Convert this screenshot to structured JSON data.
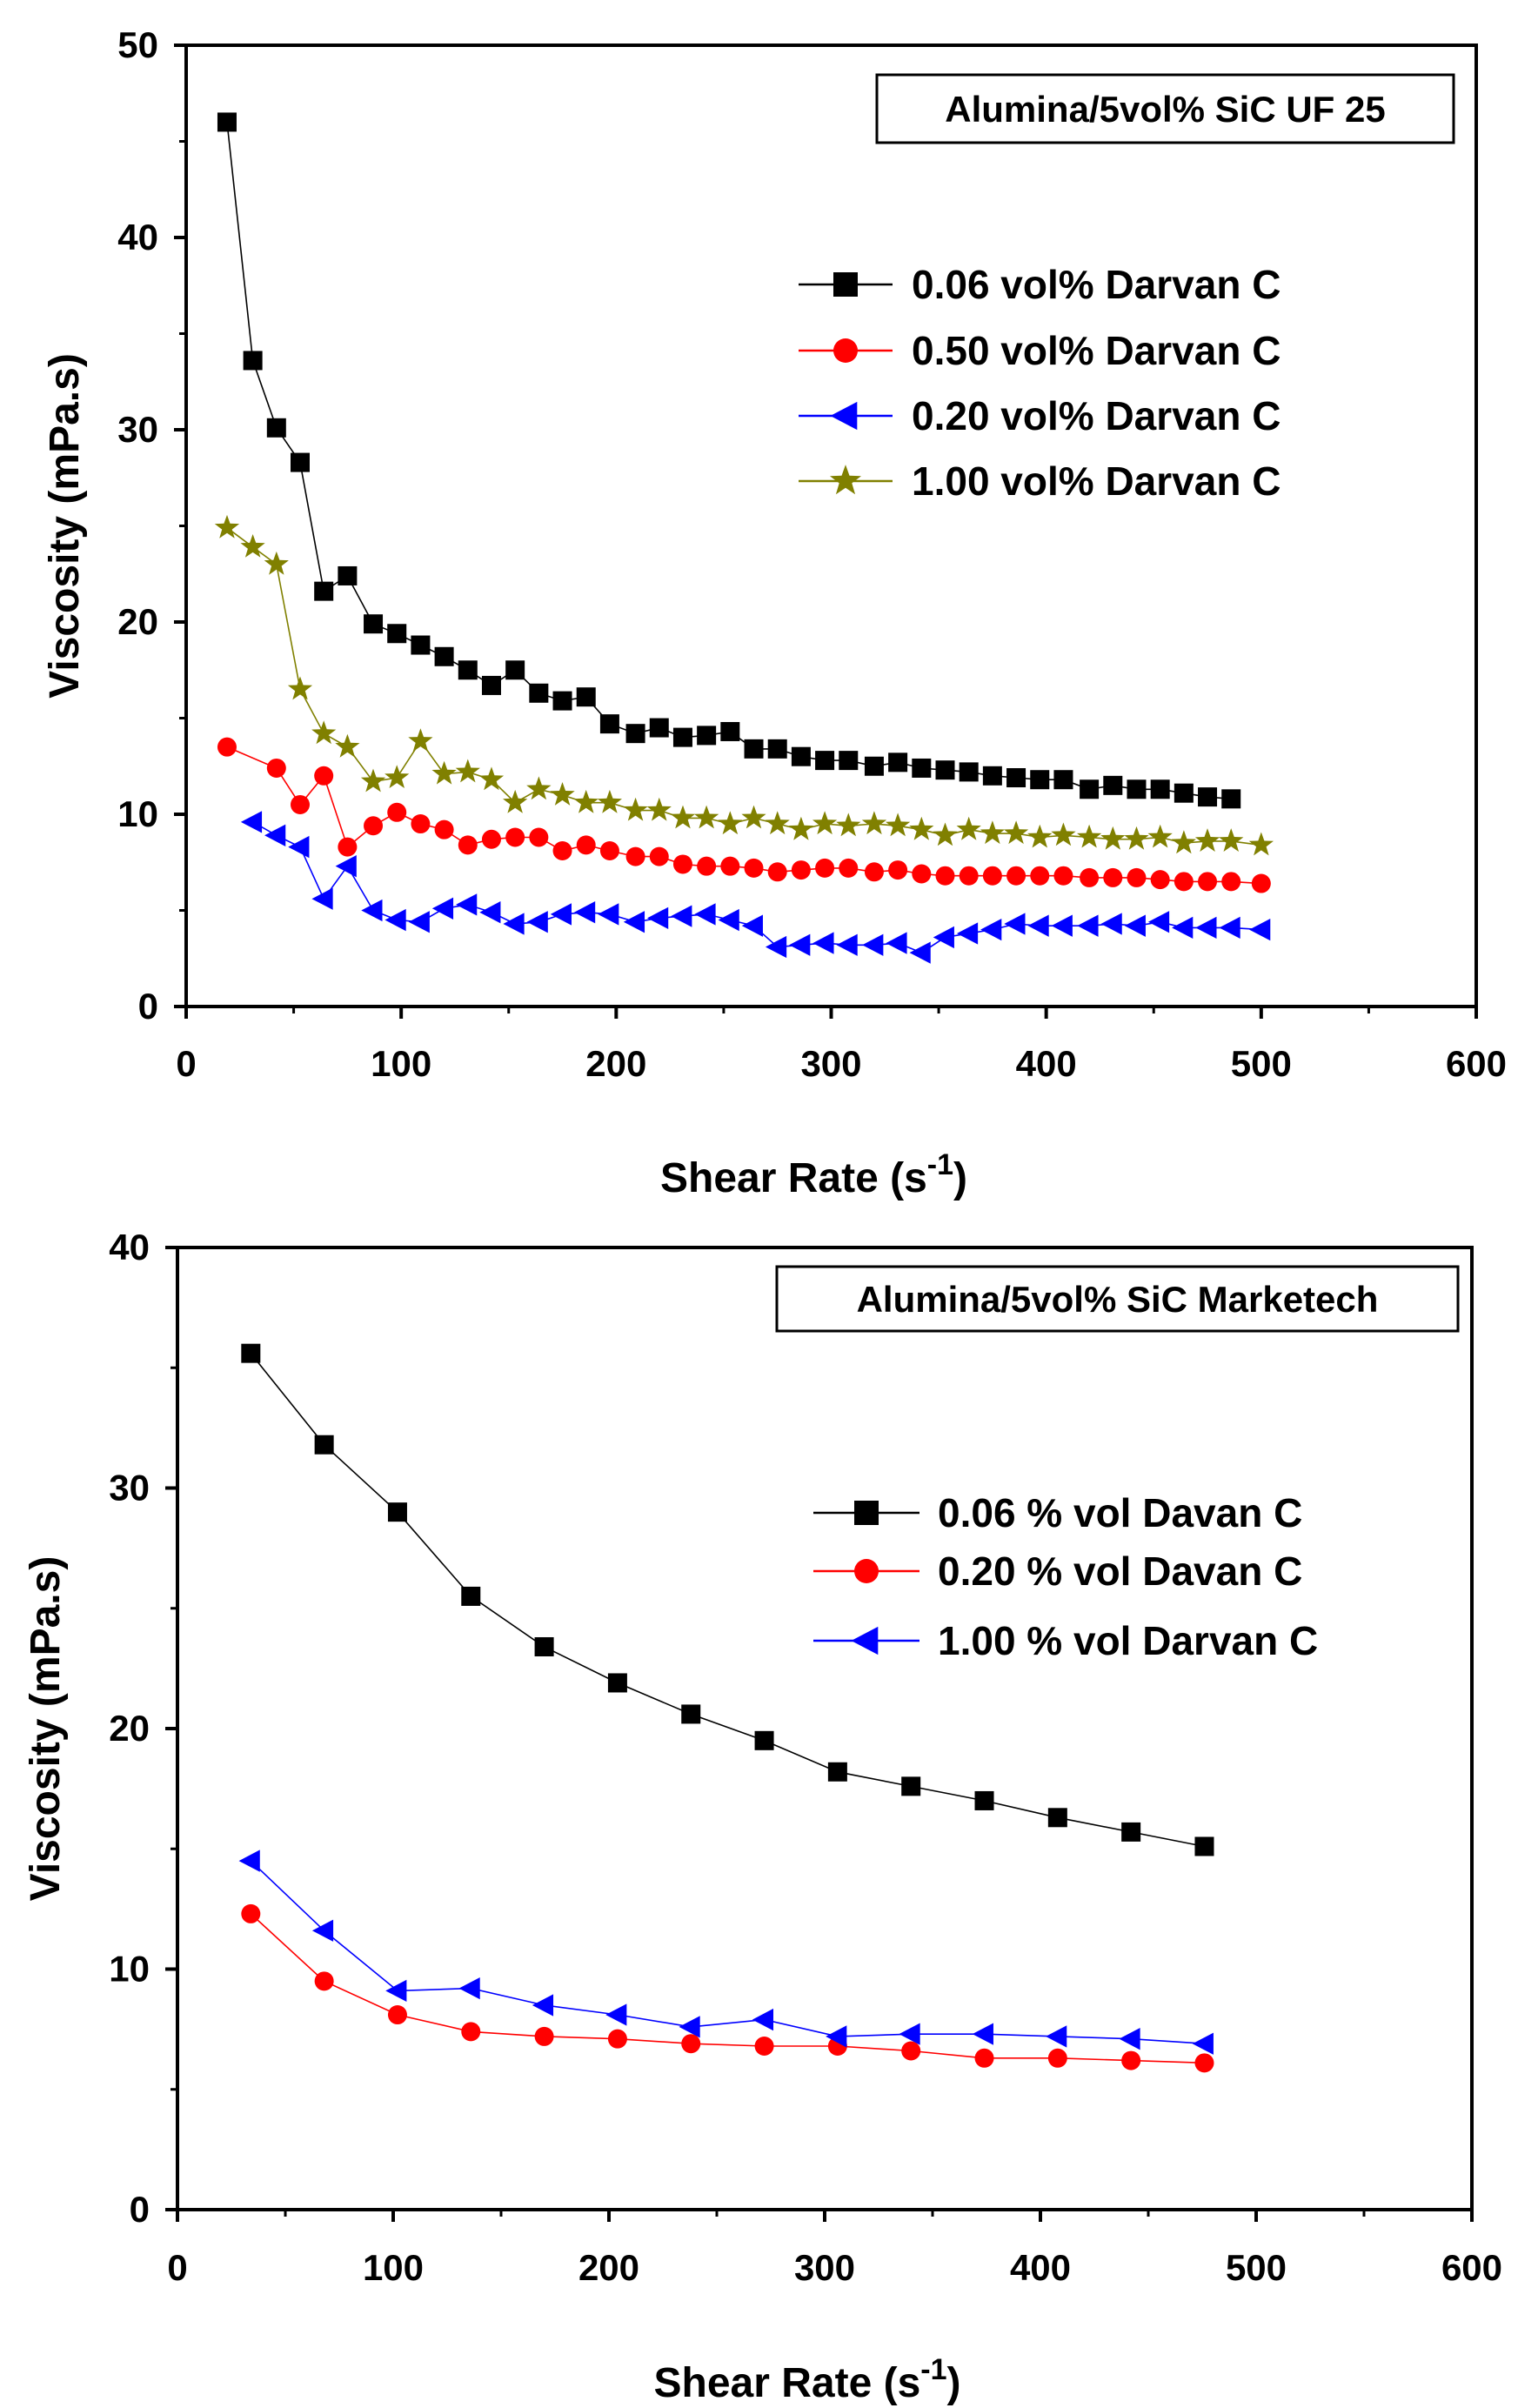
{
  "chart_data": [
    {
      "type": "line",
      "title": "Alumina/5vol% SiC UF 25",
      "xlabel": "Shear Rate (s",
      "xlabel_sup": "-1",
      "xlabel_end": ")",
      "ylabel": "Viscosity (mPa.s)",
      "xlim": [
        0,
        600
      ],
      "ylim": [
        0,
        50
      ],
      "xticks": [
        0,
        100,
        200,
        300,
        400,
        500,
        600
      ],
      "yticks": [
        0,
        10,
        20,
        30,
        40,
        50
      ],
      "legend_position": "top-right",
      "series": [
        {
          "name": "0.06  vol%  Darvan C",
          "color": "#000000",
          "marker": "square",
          "x": [
            19,
            31,
            42,
            53,
            64,
            75,
            87,
            98,
            109,
            120,
            131,
            142,
            153,
            164,
            175,
            186,
            197,
            209,
            220,
            231,
            242,
            253,
            264,
            275,
            286,
            297,
            308,
            320,
            331,
            342,
            353,
            364,
            375,
            386,
            397,
            408,
            420,
            431,
            442,
            453,
            464,
            475,
            486
          ],
          "y": [
            46.0,
            33.6,
            30.1,
            28.3,
            21.6,
            22.4,
            19.9,
            19.4,
            18.8,
            18.2,
            17.5,
            16.7,
            17.5,
            16.3,
            15.9,
            16.1,
            14.7,
            14.2,
            14.5,
            14.0,
            14.1,
            14.3,
            13.4,
            13.4,
            13.0,
            12.8,
            12.8,
            12.5,
            12.7,
            12.4,
            12.3,
            12.2,
            12.0,
            11.9,
            11.8,
            11.8,
            11.3,
            11.5,
            11.3,
            11.3,
            11.1,
            10.9,
            10.8
          ]
        },
        {
          "name": "0.50  vol%  Darvan C",
          "color": "#ff0000",
          "marker": "circle",
          "x": [
            19,
            42,
            53,
            64,
            75,
            87,
            98,
            109,
            120,
            131,
            142,
            153,
            164,
            175,
            186,
            197,
            209,
            220,
            231,
            242,
            253,
            264,
            275,
            286,
            297,
            308,
            320,
            331,
            342,
            353,
            364,
            375,
            386,
            397,
            408,
            420,
            431,
            442,
            453,
            464,
            475,
            486,
            500
          ],
          "y": [
            13.5,
            12.4,
            10.5,
            12.0,
            8.3,
            9.4,
            10.1,
            9.5,
            9.2,
            8.4,
            8.7,
            8.8,
            8.8,
            8.1,
            8.4,
            8.1,
            7.8,
            7.8,
            7.4,
            7.3,
            7.3,
            7.2,
            7.0,
            7.1,
            7.2,
            7.2,
            7.0,
            7.1,
            6.9,
            6.8,
            6.8,
            6.8,
            6.8,
            6.8,
            6.8,
            6.7,
            6.7,
            6.7,
            6.6,
            6.5,
            6.5,
            6.5,
            6.4
          ]
        },
        {
          "name": "0.20  vol%  Darvan C",
          "color": "#0000ff",
          "marker": "triangle-left",
          "x": [
            31,
            42,
            53,
            64,
            75,
            87,
            98,
            109,
            120,
            131,
            142,
            153,
            164,
            175,
            186,
            197,
            209,
            220,
            231,
            242,
            253,
            264,
            275,
            286,
            297,
            308,
            320,
            331,
            342,
            353,
            364,
            375,
            386,
            397,
            408,
            420,
            431,
            442,
            453,
            464,
            475,
            486,
            500
          ],
          "y": [
            9.6,
            8.9,
            8.3,
            5.6,
            7.3,
            5.0,
            4.5,
            4.4,
            5.1,
            5.3,
            4.9,
            4.3,
            4.4,
            4.8,
            4.9,
            4.8,
            4.4,
            4.6,
            4.7,
            4.8,
            4.5,
            4.2,
            3.1,
            3.2,
            3.3,
            3.2,
            3.2,
            3.3,
            2.8,
            3.6,
            3.8,
            4.0,
            4.3,
            4.2,
            4.2,
            4.2,
            4.3,
            4.2,
            4.4,
            4.1,
            4.1,
            4.1,
            4.0
          ]
        },
        {
          "name": "1.00  vol%  Darvan C",
          "color": "#808000",
          "marker": "star",
          "x": [
            19,
            31,
            42,
            53,
            64,
            75,
            87,
            98,
            109,
            120,
            131,
            142,
            153,
            164,
            175,
            186,
            197,
            209,
            220,
            231,
            242,
            253,
            264,
            275,
            286,
            297,
            308,
            320,
            331,
            342,
            353,
            364,
            375,
            386,
            397,
            408,
            420,
            431,
            442,
            453,
            464,
            475,
            486,
            500
          ],
          "y": [
            24.9,
            23.9,
            23.0,
            16.5,
            14.2,
            13.5,
            11.7,
            11.9,
            13.8,
            12.1,
            12.2,
            11.8,
            10.6,
            11.3,
            11.0,
            10.6,
            10.6,
            10.2,
            10.2,
            9.8,
            9.8,
            9.5,
            9.8,
            9.5,
            9.2,
            9.5,
            9.4,
            9.5,
            9.4,
            9.2,
            8.9,
            9.2,
            9.0,
            9.0,
            8.8,
            8.9,
            8.8,
            8.7,
            8.7,
            8.8,
            8.5,
            8.6,
            8.6,
            8.4
          ]
        }
      ]
    },
    {
      "type": "line",
      "title": "Alumina/5vol% SiC Marketech",
      "xlabel": "Shear Rate (s",
      "xlabel_sup": "-1",
      "xlabel_end": ")",
      "ylabel": "Viscosity (mPa.s)",
      "xlim": [
        0,
        600
      ],
      "ylim": [
        0,
        40
      ],
      "xticks": [
        0,
        100,
        200,
        300,
        400,
        500,
        600
      ],
      "yticks": [
        0,
        10,
        20,
        30,
        40
      ],
      "legend_position": "right",
      "series": [
        {
          "name": "0.06  % vol Davan C",
          "color": "#000000",
          "marker": "square",
          "x": [
            34,
            68,
            102,
            136,
            170,
            204,
            238,
            272,
            306,
            340,
            374,
            408,
            442,
            476
          ],
          "y": [
            35.6,
            31.8,
            29.0,
            25.5,
            23.4,
            21.9,
            20.6,
            19.5,
            18.2,
            17.6,
            17.0,
            16.3,
            15.7,
            15.1
          ]
        },
        {
          "name": "0.20  % vol  Davan C",
          "color": "#ff0000",
          "marker": "circle",
          "x": [
            34,
            68,
            102,
            136,
            170,
            204,
            238,
            272,
            306,
            340,
            374,
            408,
            442,
            476
          ],
          "y": [
            12.3,
            9.5,
            8.1,
            7.4,
            7.2,
            7.1,
            6.9,
            6.8,
            6.8,
            6.6,
            6.3,
            6.3,
            6.2,
            6.1
          ]
        },
        {
          "name": "1.00  % vol  Darvan C",
          "color": "#0000ff",
          "marker": "triangle-left",
          "x": [
            34,
            68,
            102,
            136,
            170,
            204,
            238,
            272,
            306,
            340,
            374,
            408,
            442,
            476
          ],
          "y": [
            14.5,
            11.6,
            9.1,
            9.2,
            8.5,
            8.1,
            7.6,
            7.9,
            7.2,
            7.3,
            7.3,
            7.2,
            7.1,
            6.9
          ]
        }
      ]
    }
  ]
}
